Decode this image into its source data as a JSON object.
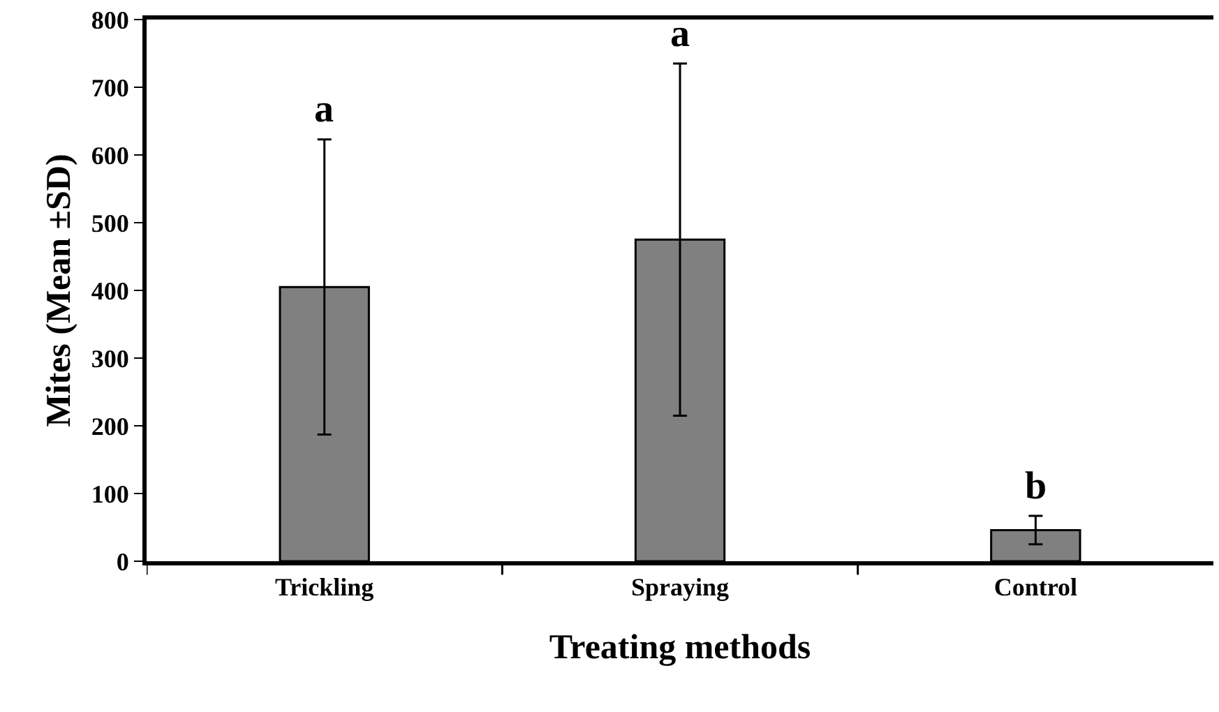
{
  "chart_data": {
    "type": "bar",
    "categories": [
      "Trickling",
      "Spraying",
      "Control"
    ],
    "values": [
      405,
      475,
      46
    ],
    "errors": [
      218,
      260,
      21
    ],
    "color": "#808080",
    "xlabel": "Treating methods",
    "ylabel": "Mites (Mean ±SD)",
    "ylim": [
      0,
      800
    ],
    "yticks": [
      0,
      100,
      200,
      300,
      400,
      500,
      600,
      700,
      800
    ],
    "annotations": [
      {
        "text": "a",
        "x": "Trickling",
        "y": 623
      },
      {
        "text": "a",
        "x": "Spraying",
        "y": 735
      },
      {
        "text": "b",
        "x": "Control",
        "y": 67
      }
    ]
  }
}
